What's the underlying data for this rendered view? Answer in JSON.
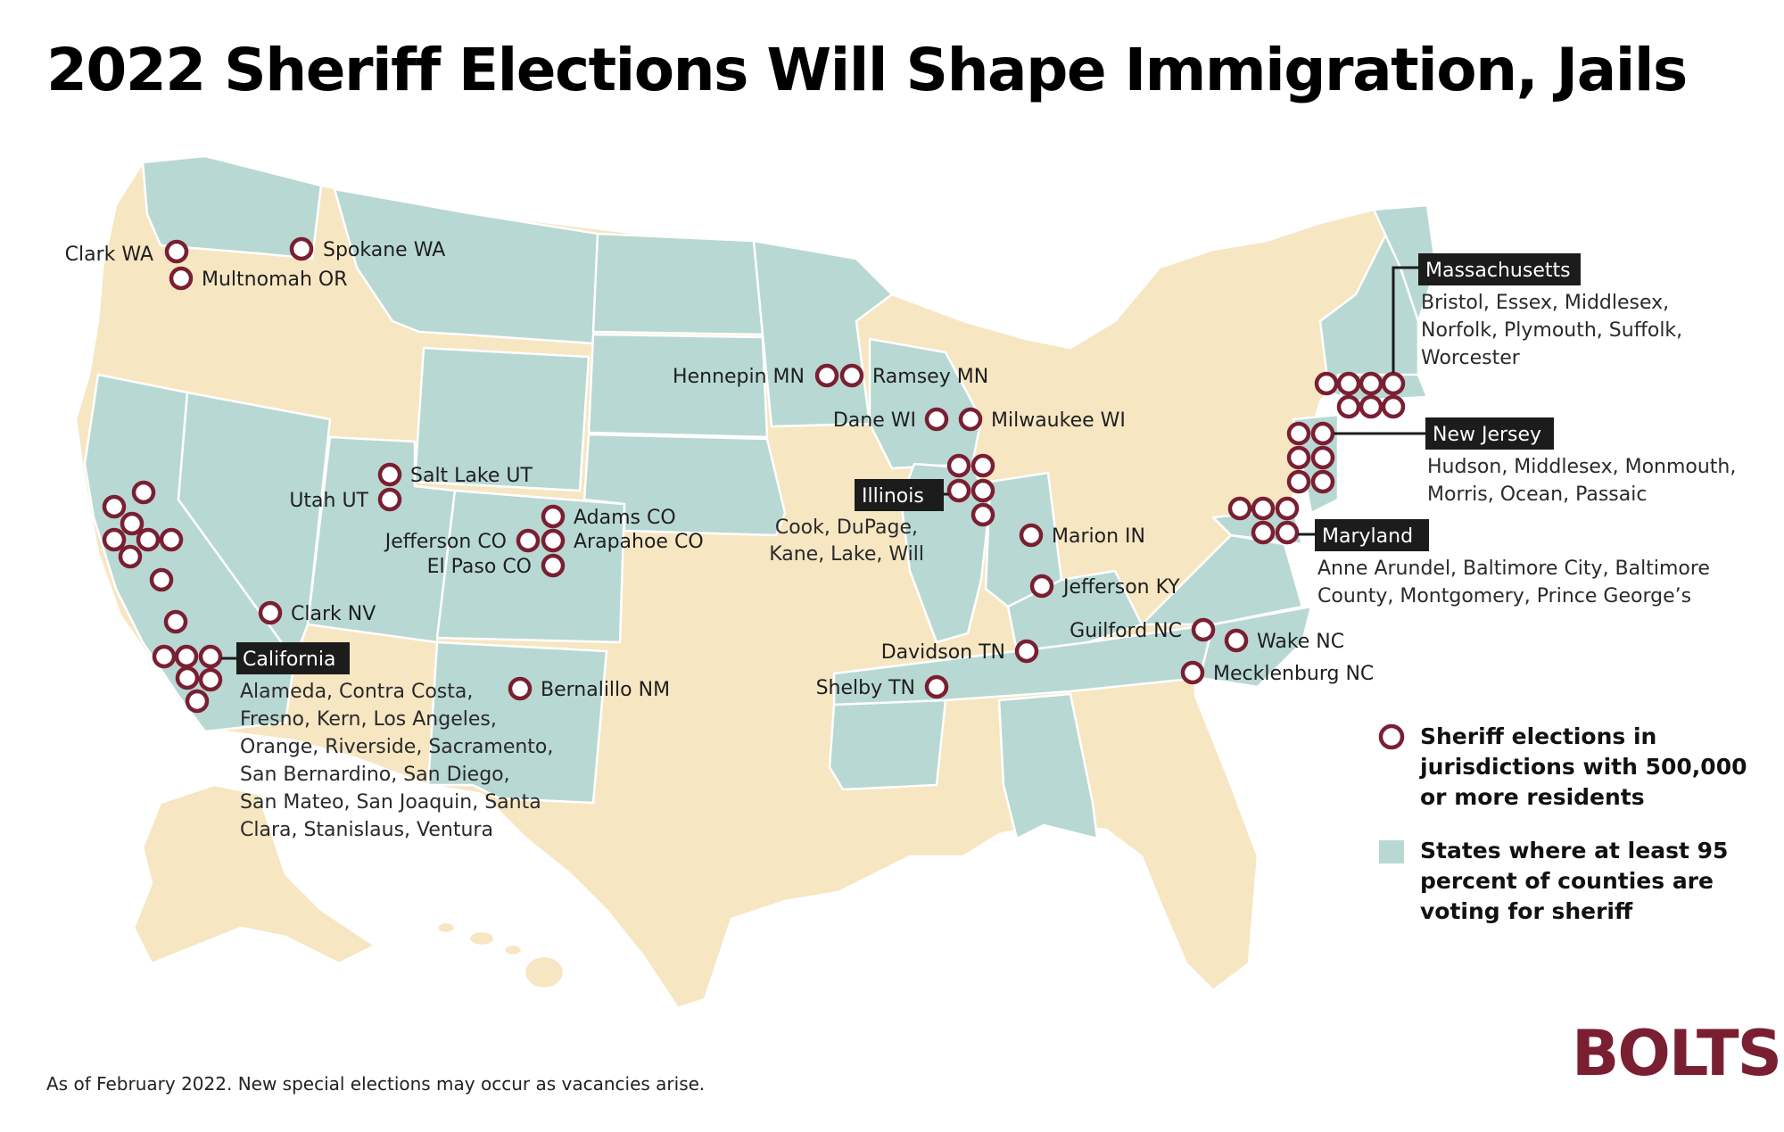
{
  "title": "2022 Sheriff Elections Will Shape Immigration, Jails",
  "footnote": "As of February 2022. New special elections may occur as vacancies arise.",
  "logo": "BOLTS",
  "colors": {
    "green_states": "#b8d8d3",
    "other_states": "#f6e6c2",
    "marker": "#7a1f32",
    "tag_bg": "#1c1c1c",
    "border": "#ffffff"
  },
  "legend": {
    "marker_lines": [
      "Sheriff elections in",
      "jurisdictions with 500,000",
      "or more residents"
    ],
    "area_lines": [
      "States where at least 95",
      "percent of counties are",
      "voting for sheriff"
    ]
  },
  "labels": {
    "clark_wa": "Clark WA",
    "multnomah_or": "Multnomah OR",
    "spokane_wa": "Spokane WA",
    "salt_lake_ut": "Salt Lake UT",
    "utah_ut": "Utah UT",
    "adams_co": "Adams CO",
    "jefferson_co": "Jefferson CO",
    "arapahoe_co": "Arapahoe CO",
    "el_paso_co": "El Paso CO",
    "clark_nv": "Clark NV",
    "bernalillo_nm": "Bernalillo NM",
    "hennepin_mn": "Hennepin MN",
    "ramsey_mn": "Ramsey MN",
    "dane_wi": "Dane WI",
    "milwaukee_wi": "Milwaukee WI",
    "marion_in": "Marion IN",
    "jefferson_ky": "Jefferson KY",
    "davidson_tn": "Davidson TN",
    "shelby_tn": "Shelby TN",
    "guilford_nc": "Guilford NC",
    "wake_nc": "Wake NC",
    "mecklenburg_nc": "Mecklenburg NC"
  },
  "groups": {
    "california": {
      "tag": "California",
      "lines": [
        "Alameda, Contra Costa,",
        "Fresno, Kern, Los Angeles,",
        "Orange, Riverside, Sacramento,",
        "San Bernardino, San Diego,",
        "San Mateo, San Joaquin, Santa",
        "Clara, Stanislaus, Ventura"
      ]
    },
    "illinois": {
      "tag": "Illinois",
      "lines": [
        "Cook, DuPage,",
        "Kane, Lake, Will"
      ]
    },
    "massachusetts": {
      "tag": "Massachusetts",
      "lines": [
        "Bristol, Essex, Middlesex,",
        "Norfolk, Plymouth, Suffolk,",
        "Worcester"
      ]
    },
    "new_jersey": {
      "tag": "New Jersey",
      "lines": [
        "Hudson, Middlesex, Monmouth,",
        "Morris, Ocean, Passaic"
      ]
    },
    "maryland": {
      "tag": "Maryland",
      "lines": [
        "Anne Arundel, Baltimore City, Baltimore",
        "County, Montgomery, Prince George’s"
      ]
    }
  }
}
